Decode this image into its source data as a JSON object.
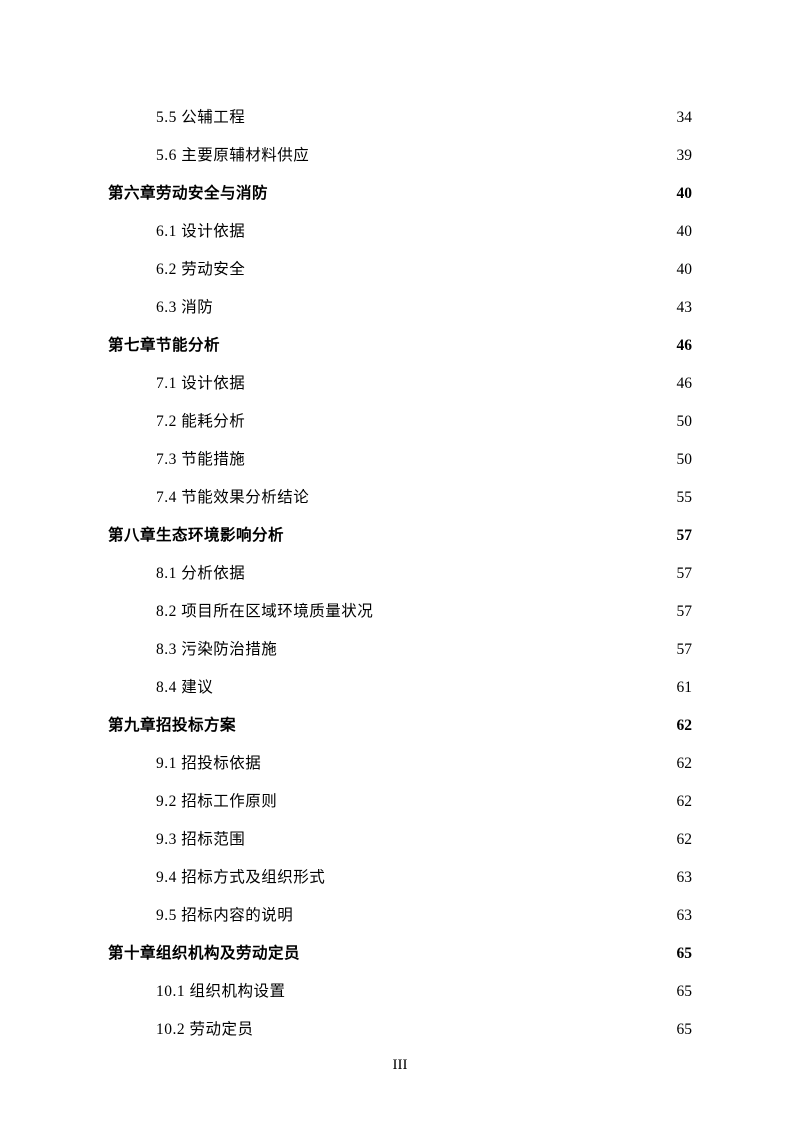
{
  "toc": {
    "entries": [
      {
        "level": "section",
        "label": "5.5 公辅工程",
        "page": "34"
      },
      {
        "level": "section",
        "label": "5.6 主要原辅材料供应",
        "page": "39"
      },
      {
        "level": "chapter",
        "label": "第六章劳动安全与消防",
        "page": "40"
      },
      {
        "level": "section",
        "label": "6.1 设计依据",
        "page": "40"
      },
      {
        "level": "section",
        "label": "6.2 劳动安全",
        "page": "40"
      },
      {
        "level": "section",
        "label": "6.3 消防",
        "page": "43"
      },
      {
        "level": "chapter",
        "label": "第七章节能分析",
        "page": "46"
      },
      {
        "level": "section",
        "label": "7.1 设计依据",
        "page": "46"
      },
      {
        "level": "section",
        "label": "7.2 能耗分析",
        "page": "50"
      },
      {
        "level": "section",
        "label": "7.3 节能措施",
        "page": "50"
      },
      {
        "level": "section",
        "label": "7.4 节能效果分析结论",
        "page": "55"
      },
      {
        "level": "chapter",
        "label": "第八章生态环境影响分析",
        "page": "57"
      },
      {
        "level": "section",
        "label": "8.1 分析依据",
        "page": "57"
      },
      {
        "level": "section",
        "label": "8.2 项目所在区域环境质量状况",
        "page": "57"
      },
      {
        "level": "section",
        "label": "8.3 污染防治措施",
        "page": "57"
      },
      {
        "level": "section",
        "label": "8.4 建议",
        "page": "61"
      },
      {
        "level": "chapter",
        "label": "第九章招投标方案",
        "page": "62"
      },
      {
        "level": "section",
        "label": "9.1 招投标依据",
        "page": "62"
      },
      {
        "level": "section",
        "label": "9.2 招标工作原则",
        "page": "62"
      },
      {
        "level": "section",
        "label": "9.3 招标范围",
        "page": "62"
      },
      {
        "level": "section",
        "label": "9.4 招标方式及组织形式",
        "page": "63"
      },
      {
        "level": "section",
        "label": "9.5 招标内容的说明",
        "page": "63"
      },
      {
        "level": "chapter",
        "label": "第十章组织机构及劳动定员",
        "page": "65"
      },
      {
        "level": "section",
        "label": "10.1 组织机构设置",
        "page": "65"
      },
      {
        "level": "section",
        "label": "10.2 劳动定员",
        "page": "65"
      }
    ]
  },
  "page_footer": "III"
}
